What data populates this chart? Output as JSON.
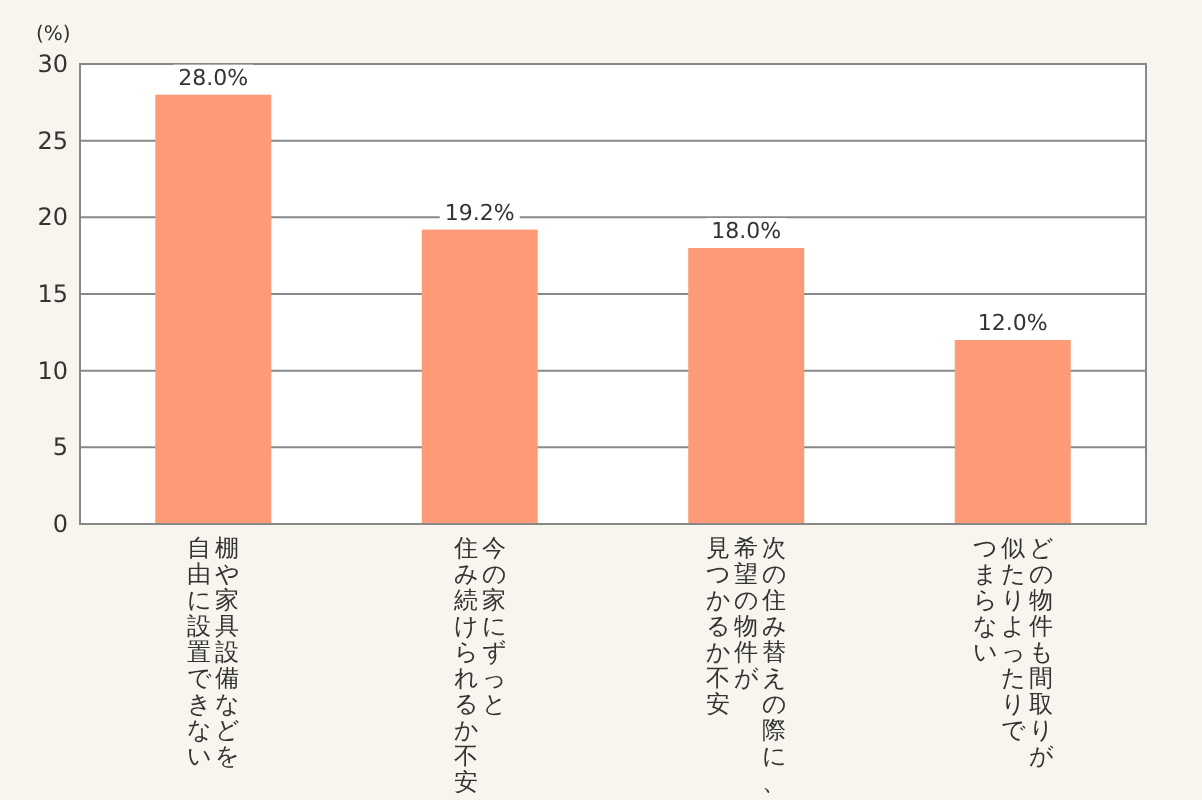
{
  "chart_data": {
    "type": "bar",
    "ylabel": "(%)",
    "categories": [
      "棚や家具設備などを自由に設置できない",
      "今の家にずっと住み続けられるか不安",
      "次の住み替えの際に、希望の物件が見つかるか不安",
      "どの物件も間取りが似たりよったりでつまらない"
    ],
    "values": [
      28.0,
      19.2,
      18.0,
      12.0
    ],
    "value_labels": [
      "28.0%",
      "19.2%",
      "18.0%",
      "12.0%"
    ],
    "color": "#ff9a76",
    "ylim": [
      0,
      30
    ],
    "yticks": [
      0,
      5,
      10,
      15,
      20,
      25,
      30
    ],
    "grid": "y"
  }
}
